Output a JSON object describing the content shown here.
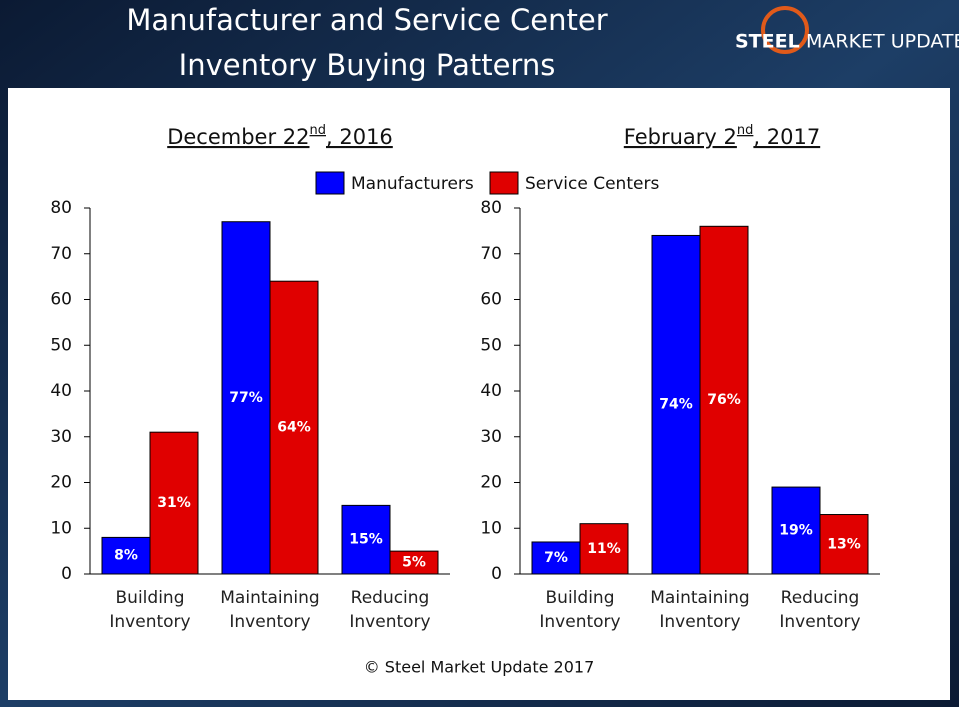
{
  "title": [
    "Manufacturer and Service Center",
    "Inventory Buying Patterns"
  ],
  "logo": [
    "STEEL",
    "MARKET UPDATE"
  ],
  "footer": "© Steel Market Update 2017",
  "chart_data": [
    {
      "type": "bar",
      "title": [
        "December 22",
        "nd",
        ", 2016"
      ],
      "categories": [
        "Building Inventory",
        "Maintaining Inventory",
        "Reducing Inventory"
      ],
      "series": [
        {
          "name": "Manufacturers",
          "color": "#0000ff",
          "values": [
            8,
            77,
            15
          ],
          "value_labels": [
            "8%",
            "77%",
            "15%"
          ]
        },
        {
          "name": "Service Centers",
          "color": "#e00000",
          "values": [
            31,
            64,
            5
          ],
          "value_labels": [
            "31%",
            "64%",
            "5%"
          ]
        }
      ],
      "ylim": [
        0,
        80
      ],
      "yticks": [
        0,
        10,
        20,
        30,
        40,
        50,
        60,
        70,
        80
      ],
      "grid": false
    },
    {
      "type": "bar",
      "title": [
        "February 2",
        "nd",
        ", 2017"
      ],
      "categories": [
        "Building Inventory",
        "Maintaining Inventory",
        "Reducing Inventory"
      ],
      "series": [
        {
          "name": "Manufacturers",
          "color": "#0000ff",
          "values": [
            7,
            74,
            19
          ],
          "value_labels": [
            "7%",
            "74%",
            "19%"
          ]
        },
        {
          "name": "Service Centers",
          "color": "#e00000",
          "values": [
            11,
            76,
            13
          ],
          "value_labels": [
            "11%",
            "76%",
            "13%"
          ]
        }
      ],
      "ylim": [
        0,
        80
      ],
      "yticks": [
        0,
        10,
        20,
        30,
        40,
        50,
        60,
        70,
        80
      ],
      "grid": false
    }
  ]
}
